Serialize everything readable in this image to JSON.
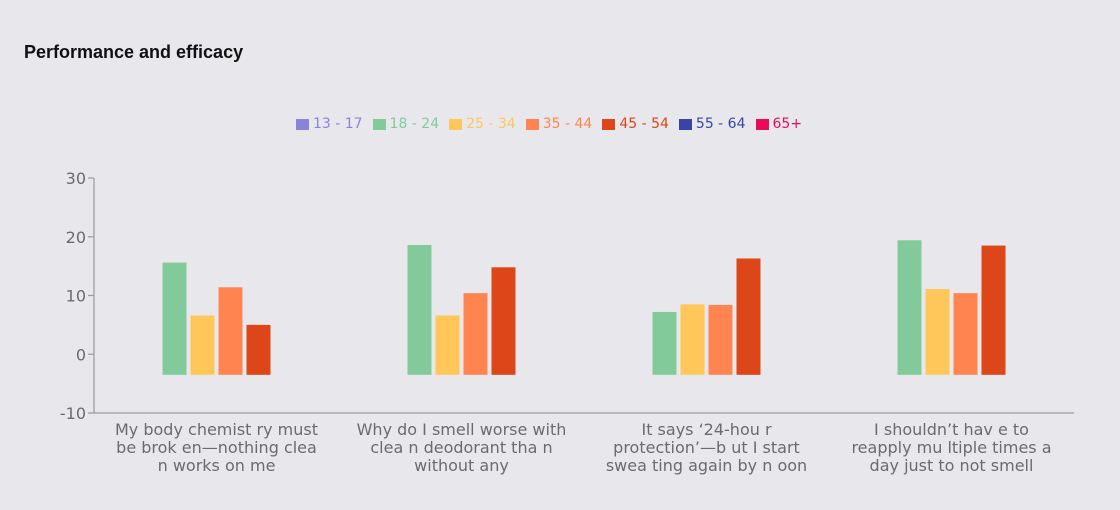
{
  "chart_data": {
    "type": "bar",
    "title": "Performance and efficacy",
    "categories": [
      [
        "My body chemist ry must",
        "be brok en—nothing clea",
        "n works on me"
      ],
      [
        "Why do I smell worse with",
        "clea n deodorant tha n",
        "without any"
      ],
      [
        "It says ‘24-hou r",
        "protection’—b ut I start",
        "swea ting again by n oon"
      ],
      [
        "I shouldn’t hav e to",
        "reapply mu ltiple times a",
        "day just to not smell"
      ]
    ],
    "series": [
      {
        "name": "13 - 17",
        "color": "#8b83d9",
        "values": [
          null,
          null,
          null,
          null
        ]
      },
      {
        "name": "18 - 24",
        "color": "#83ca9a",
        "values": [
          15.6,
          18.6,
          7.2,
          19.4
        ]
      },
      {
        "name": "25 - 34",
        "color": "#ffc75a",
        "values": [
          6.6,
          6.6,
          8.5,
          11.1
        ]
      },
      {
        "name": "35 - 44",
        "color": "#ff8450",
        "values": [
          11.4,
          10.4,
          8.4,
          10.4
        ]
      },
      {
        "name": "45 - 54",
        "color": "#dc4618",
        "values": [
          5.0,
          14.8,
          16.3,
          18.5
        ]
      },
      {
        "name": "55 - 64",
        "color": "#3a44a6",
        "values": [
          null,
          null,
          null,
          null
        ]
      },
      {
        "name": "65+",
        "color": "#ea0a5a",
        "values": [
          null,
          null,
          null,
          null
        ]
      }
    ],
    "ylim": [
      -10,
      30
    ],
    "yticks": [
      -10,
      0,
      10,
      20,
      30
    ],
    "bar_baseline": -3.5,
    "grid": false,
    "legend_position": "top-center"
  }
}
